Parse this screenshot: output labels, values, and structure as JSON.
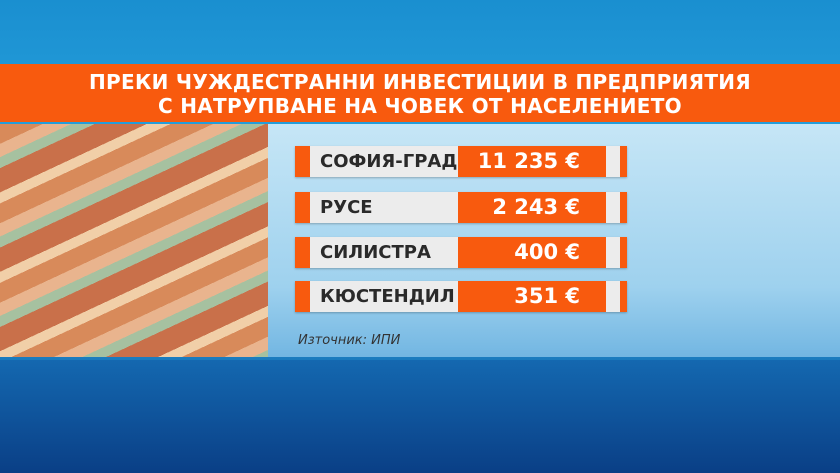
{
  "title": {
    "line1": "ПРЕКИ ЧУЖДЕСТРАННИ ИНВЕСТИЦИИ В ПРЕДПРИЯТИЯ",
    "line2": "С НАТРУПВАНЕ НА ЧОВЕК ОТ НАСЕЛЕНИЕТО"
  },
  "rows": [
    {
      "label": "СОФИЯ-ГРАД",
      "value": "11 235 €"
    },
    {
      "label": "РУСЕ",
      "value": "2 243 €"
    },
    {
      "label": "СИЛИСТРА",
      "value": "400 €"
    },
    {
      "label": "КЮСТЕНДИЛ",
      "value": "351 €"
    }
  ],
  "source": "Източник: ИПИ",
  "colors": {
    "accent": "#f85a0e",
    "label_bg": "#ececec",
    "background": "#1a8fd0"
  }
}
